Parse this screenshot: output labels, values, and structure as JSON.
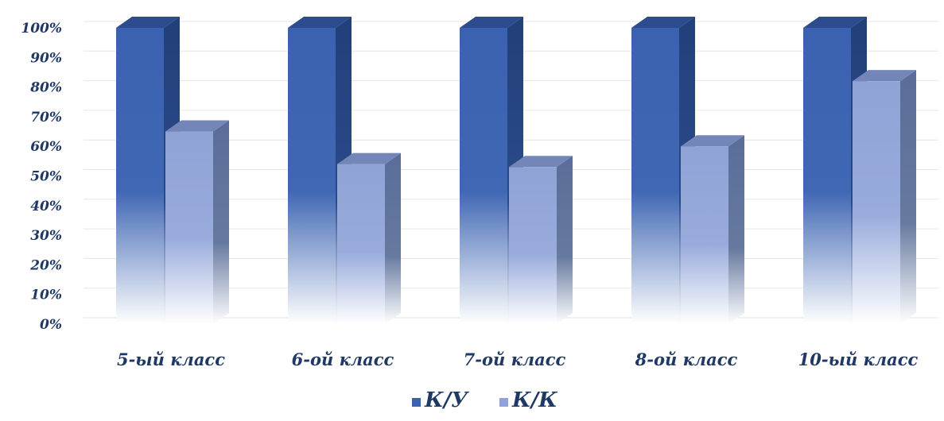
{
  "chart_data": {
    "type": "bar",
    "style": "3d-clustered-column",
    "categories": [
      "5-ый класс",
      "6-ой класс",
      "7-ой класс",
      "8-ой класс",
      "10-ый класс"
    ],
    "series": [
      {
        "name": "К/У",
        "values": [
          100,
          100,
          100,
          100,
          100
        ],
        "color": "#3a62b0"
      },
      {
        "name": "К/К",
        "values": [
          65,
          54,
          53,
          60,
          82
        ],
        "color": "#8fa3d6"
      }
    ],
    "yticks": [
      "0%",
      "10%",
      "20%",
      "30%",
      "40%",
      "50%",
      "60%",
      "70%",
      "80%",
      "90%",
      "100%"
    ],
    "ylim": [
      0,
      100
    ],
    "grid": true,
    "legend_position": "bottom"
  }
}
